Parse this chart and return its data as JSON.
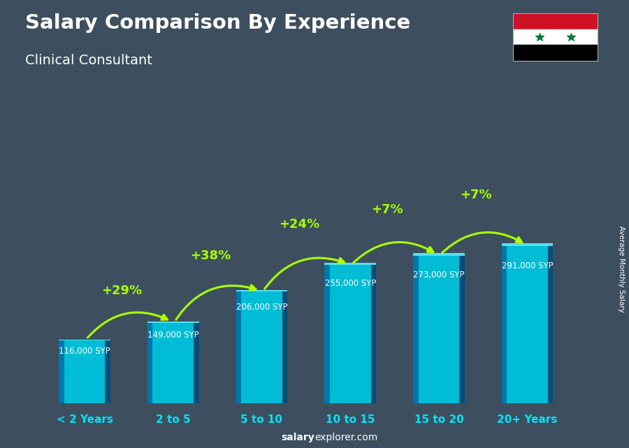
{
  "title": "Salary Comparison By Experience",
  "subtitle": "Clinical Consultant",
  "categories": [
    "< 2 Years",
    "2 to 5",
    "5 to 10",
    "10 to 15",
    "15 to 20",
    "20+ Years"
  ],
  "values": [
    116000,
    149000,
    206000,
    255000,
    273000,
    291000
  ],
  "labels": [
    "116,000 SYP",
    "149,000 SYP",
    "206,000 SYP",
    "255,000 SYP",
    "273,000 SYP",
    "291,000 SYP"
  ],
  "pct_changes": [
    "+29%",
    "+38%",
    "+24%",
    "+7%",
    "+7%"
  ],
  "bar_face_color": "#00bcd4",
  "bar_left_color": "#0077aa",
  "bar_right_color": "#004d77",
  "bar_top_color": "#55e0f0",
  "background_color": "#3d4f5e",
  "title_color": "#ffffff",
  "subtitle_color": "#ffffff",
  "label_color": "#ffffff",
  "pct_color": "#aaff00",
  "cat_color": "#00e5ff",
  "ylabel_text": "Average Monthly Salary",
  "footer_bold": "salary",
  "footer_normal": "explorer.com"
}
